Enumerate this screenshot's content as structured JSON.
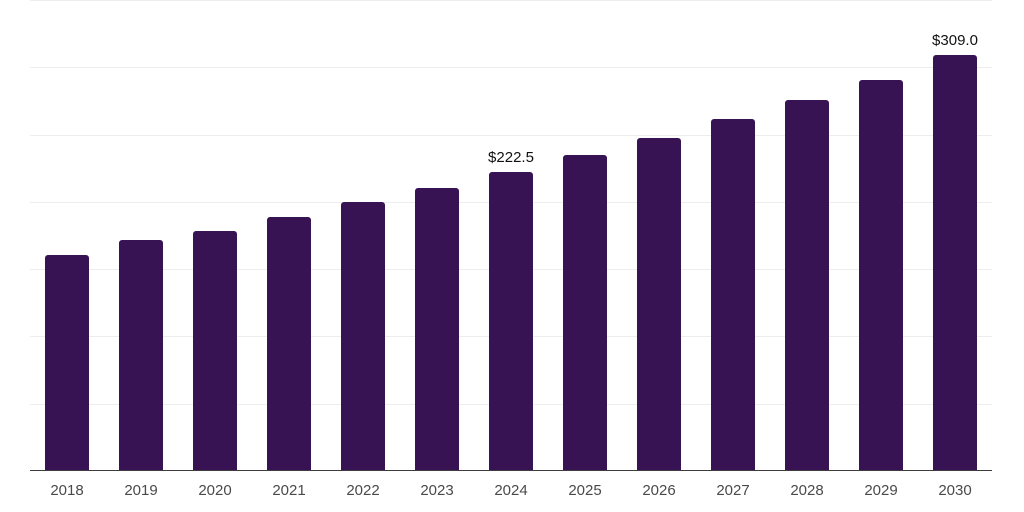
{
  "chart_data": {
    "type": "bar",
    "title": "",
    "xlabel": "",
    "ylabel": "",
    "categories": [
      "2018",
      "2019",
      "2020",
      "2021",
      "2022",
      "2023",
      "2024",
      "2025",
      "2026",
      "2027",
      "2028",
      "2029",
      "2030"
    ],
    "values": [
      160.5,
      171.5,
      178.0,
      189.0,
      200.0,
      210.0,
      222.5,
      235.0,
      247.5,
      261.5,
      275.5,
      290.5,
      309.0
    ],
    "point_labels": [
      "",
      "",
      "",
      "",
      "",
      "",
      "$222.5",
      "",
      "",
      "",
      "",
      "",
      "$309.0"
    ],
    "ylim": [
      0,
      350
    ],
    "gridline_step": 50,
    "grid": "horizontal",
    "legend": "none",
    "colors": {
      "bar": "#371353",
      "gridline": "#ededed",
      "axis_line": "#3d3d3d",
      "value_label": "#111111",
      "tick_label": "#4a4a4a",
      "background": "#ffffff"
    }
  }
}
